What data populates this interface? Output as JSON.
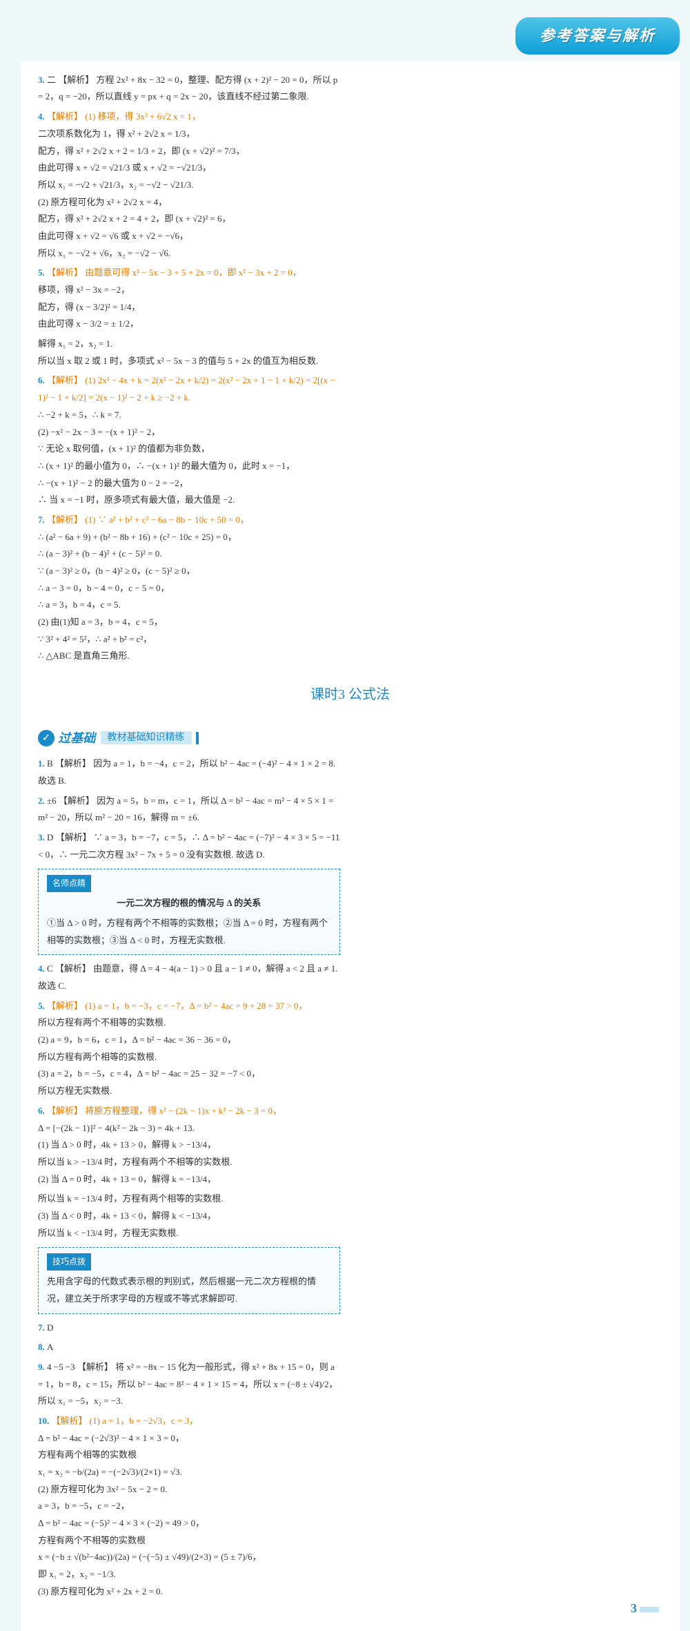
{
  "header_title": "参考答案与解析",
  "page_number": "3",
  "section_title": "课时3  公式法",
  "basics": {
    "label": "过基础",
    "sub": "教材基础知识精练"
  },
  "tip1": {
    "badge": "名师点睛",
    "title": "一元二次方程的根的情况与 Δ 的关系",
    "body": "①当 Δ > 0 时，方程有两个不相等的实数根；②当 Δ = 0 时，方程有两个相等的实数根；③当 Δ < 0 时，方程无实数根."
  },
  "tip2": {
    "badge": "技巧点拨",
    "body": "先用含字母的代数式表示根的判别式，然后根据一元二次方程根的情况，建立关于所求字母的方程或不等式求解即可."
  },
  "left": {
    "p3": "二  【解析】 方程 2x² + 8x − 32 = 0，整理、配方得 (x + 2)² − 20 = 0，所以 p = 2，q = −20，所以直线 y = px + q = 2x − 20，该直线不经过第二象限.",
    "p4a": "【解析】 (1) 移项，得 3x² + 6√2 x = 1，",
    "p4b": "二次项系数化为 1，得 x² + 2√2 x = 1/3，",
    "p4c": "配方，得 x² + 2√2 x + 2 = 1/3 + 2，即 (x + √2)² = 7/3，",
    "p4d": "由此可得 x + √2 = √21/3 或 x + √2 = −√21/3，",
    "p4e": "所以 x₁ = −√2 + √21/3，x₂ = −√2 − √21/3.",
    "p4f": "(2) 原方程可化为 x² + 2√2 x = 4，",
    "p4g": "配方，得 x² + 2√2 x + 2 = 4 + 2，即 (x + √2)² = 6，",
    "p4h": "由此可得 x + √2 = √6 或 x + √2 = −√6，",
    "p4i": "所以 x₁ = −√2 + √6，x₂ = −√2 − √6.",
    "p5a": "【解析】 由题意可得 x² − 5x − 3 + 5 + 2x = 0，即 x² − 3x + 2 = 0，",
    "p5b": "移项，得 x² − 3x = −2，",
    "p5c": "配方，得 (x − 3/2)² = 1/4，",
    "p5d": "由此可得 x − 3/2 = ± 1/2，"
  },
  "right": {
    "r1": "解得 x₁ = 2，x₂ = 1.",
    "r2": "所以当 x 取 2 或 1 时，多项式 x² − 5x − 3 的值与 5 + 2x 的值互为相反数.",
    "p6a": "【解析】 (1) 2x² − 4x + k = 2(x² − 2x + k/2) = 2(x² − 2x + 1 − 1 + k/2) = 2[(x − 1)² − 1 + k/2] = 2(x − 1)² − 2 + k ≥ −2 + k.",
    "p6b": "∴ −2 + k = 5，∴ k = 7.",
    "p6c": "(2) −x² − 2x − 3 = −(x + 1)² − 2，",
    "p6d": "∵ 无论 x 取何值，(x + 1)² 的值都为非负数，",
    "p6e": "∴ (x + 1)² 的最小值为 0，∴ −(x + 1)² 的最大值为 0，此时 x = −1，",
    "p6f": "∴ −(x + 1)² − 2 的最大值为 0 − 2 = −2，",
    "p6g": "∴ 当 x = −1 时，原多项式有最大值，最大值是 −2.",
    "p7a": "【解析】 (1) ∵ a² + b² + c² − 6a − 8b − 10c + 50 = 0，",
    "p7b": "∴ (a² − 6a + 9) + (b² − 8b + 16) + (c² − 10c + 25) = 0，",
    "p7c": "∴ (a − 3)² + (b − 4)² + (c − 5)² = 0.",
    "p7d": "∵ (a − 3)² ≥ 0，(b − 4)² ≥ 0，(c − 5)² ≥ 0，",
    "p7e": "∴ a − 3 = 0，b − 4 = 0，c − 5 = 0，",
    "p7f": "∴ a = 3，b = 4，c = 5.",
    "p7g": "(2) 由(1)知 a = 3，b = 4，c = 5，",
    "p7h": "∵ 3² + 4² = 5²，∴ a² + b² = c²，",
    "p7i": "∴ △ABC 是直角三角形."
  },
  "basics_problems": {
    "b1": "B  【解析】 因为 a = 1，b = −4，c = 2，所以 b² − 4ac = (−4)² − 4 × 1 × 2 = 8. 故选 B.",
    "b2": "±6  【解析】 因为 a = 5，b = m，c = 1，所以 Δ = b² − 4ac = m² − 4 × 5 × 1 = m² − 20，所以 m² − 20 = 16，解得 m = ±6.",
    "b3": "D  【解析】 ∵ a = 3，b = −7，c = 5，∴ Δ = b² − 4ac = (−7)² − 4 × 3 × 5 = −11 < 0，∴ 一元二次方程 3x² − 7x + 5 = 0 没有实数根. 故选 D.",
    "b4": "C  【解析】 由题意，得 Δ = 4 − 4(a − 1) > 0 且 a − 1 ≠ 0，解得 a < 2 且 a ≠ 1. 故选 C.",
    "b5a": "【解析】 (1) a = 1，b = −3，c = −7，Δ = b² − 4ac = 9 + 28 = 37 > 0，",
    "b5b": "所以方程有两个不相等的实数根.",
    "b5c": "(2) a = 9，b = 6，c = 1，Δ = b² − 4ac = 36 − 36 = 0，",
    "b5d": "所以方程有两个相等的实数根.",
    "b5e": "(3) a = 2，b = −5，c = 4，Δ = b² − 4ac = 25 − 32 = −7 < 0，",
    "b5f": "所以方程无实数根.",
    "b6a": "【解析】 将原方程整理，得 x² − (2k − 1)x + k² − 2k − 3 = 0，",
    "b6b": "Δ = [−(2k − 1)]² − 4(k² − 2k − 3) = 4k + 13.",
    "b6c": "(1) 当 Δ > 0 时，4k + 13 > 0，解得 k > −13/4，",
    "b6d": "所以当 k > −13/4 时，方程有两个不相等的实数根.",
    "b6e": "(2) 当 Δ = 0 时，4k + 13 = 0，解得 k = −13/4，",
    "rb1": "所以当 k = −13/4 时，方程有两个相等的实数根.",
    "rb2": "(3) 当 Δ < 0 时，4k + 13 < 0，解得 k < −13/4，",
    "rb3": "所以当 k < −13/4 时，方程无实数根.",
    "b7": "D",
    "b8": "A",
    "b9": "4  −5  −3  【解析】 将 x² = −8x − 15 化为一般形式，得 x² + 8x + 15 = 0，则 a = 1，b = 8，c = 15，所以 b² − 4ac = 8² − 4 × 1 × 15 = 4，所以 x = (−8 ± √4)/2，所以 x₁ = −5，x₂ = −3.",
    "b10a": "【解析】 (1) a = 1，b = −2√3，c = 3，",
    "b10b": "Δ = b² − 4ac = (−2√3)² − 4 × 1 × 3 = 0，",
    "b10c": "方程有两个相等的实数根",
    "b10d": "x₁ = x₂ = −b/(2a) = −(−2√3)/(2×1) = √3.",
    "b10e": "(2) 原方程可化为 3x² − 5x − 2 = 0.",
    "b10f": "a = 3，b = −5，c = −2，",
    "b10g": "Δ = b² − 4ac = (−5)² − 4 × 3 × (−2) = 49 > 0，",
    "b10h": "方程有两个不相等的实数根",
    "b10i": "x = (−b ± √(b²−4ac))/(2a) = (−(−5) ± √49)/(2×3) = (5 ± 7)/6，",
    "b10j": "即 x₁ = 2，x₂ = −1/3.",
    "b10k": "(3) 原方程可化为 x² + 2x + 2 = 0."
  }
}
